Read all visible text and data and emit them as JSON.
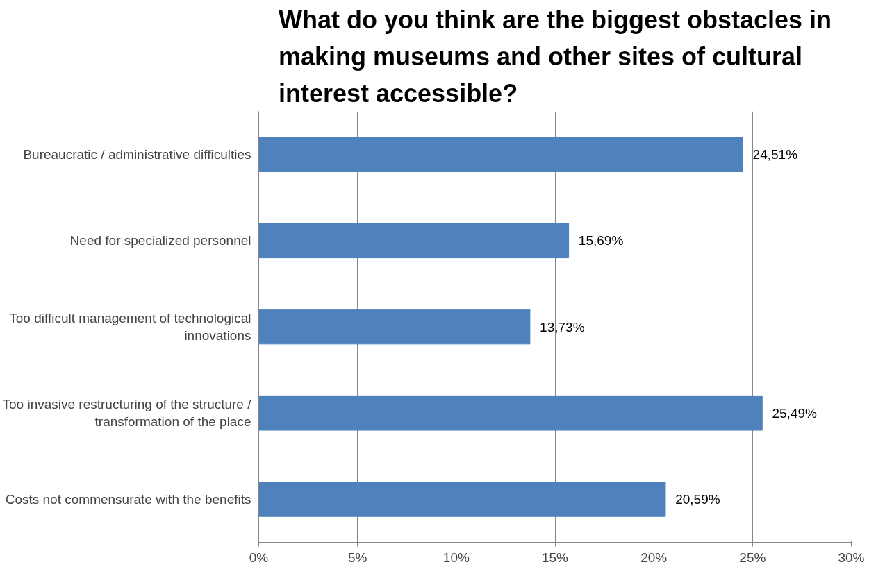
{
  "chart_data": {
    "type": "bar",
    "orientation": "horizontal",
    "title": "What do you think are the biggest obstacles in making museums and other sites of cultural interest accessible?",
    "categories": [
      "Bureaucratic / administrative difficulties",
      "Need for specialized personnel",
      "Too difficult management of technological innovations",
      "Too invasive restructuring of the structure / transformation of the place",
      "Costs not commensurate with the benefits"
    ],
    "values": [
      24.51,
      15.69,
      13.73,
      25.49,
      20.59
    ],
    "value_labels": [
      "24,51%",
      "15,69%",
      "13,73%",
      "25,49%",
      "20,59%"
    ],
    "color": "#4f81bd",
    "xlim": [
      0,
      30
    ],
    "xticks": [
      {
        "value": 0,
        "label": "0%"
      },
      {
        "value": 5,
        "label": "5%"
      },
      {
        "value": 10,
        "label": "10%"
      },
      {
        "value": 15,
        "label": "15%"
      },
      {
        "value": 20,
        "label": "20%"
      },
      {
        "value": 25,
        "label": "25%"
      },
      {
        "value": 30,
        "label": "30%"
      }
    ],
    "grid": "x"
  }
}
